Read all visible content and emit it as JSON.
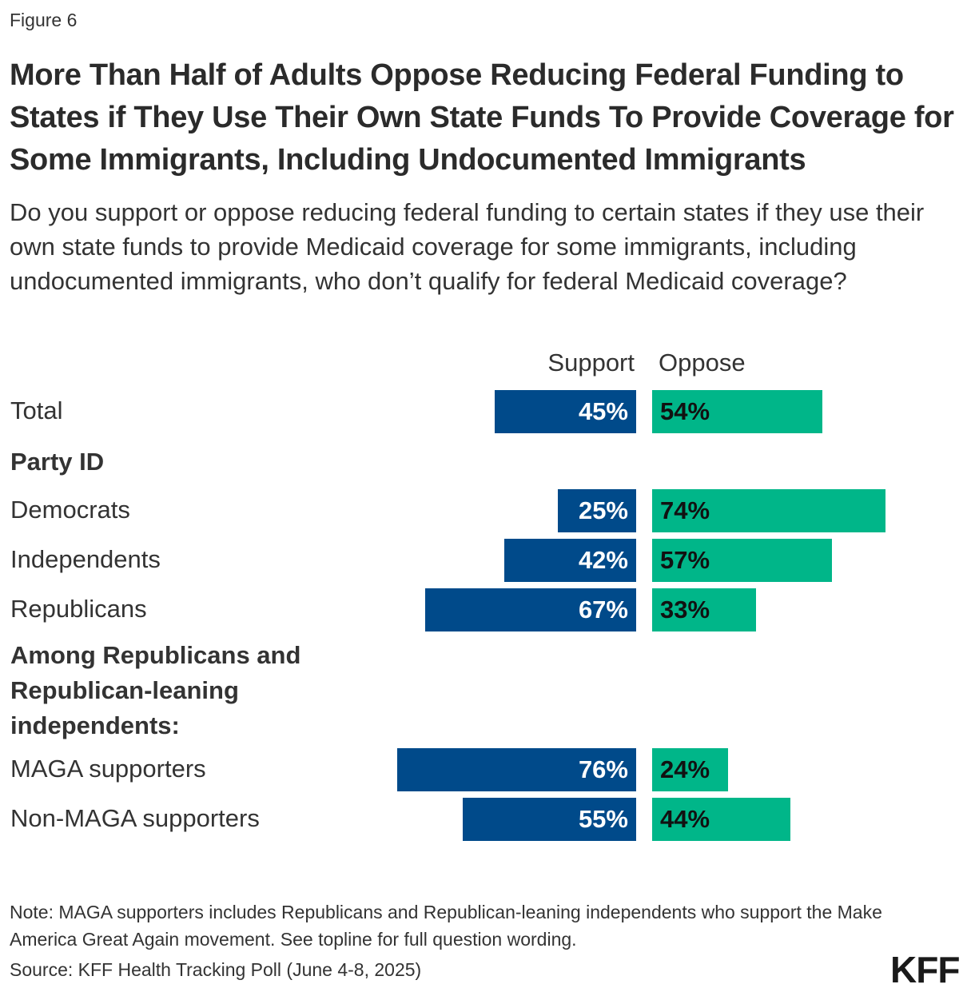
{
  "figure_label": "Figure 6",
  "title": "More Than Half of Adults Oppose Reducing Federal Funding to States if They Use Their Own State Funds To Provide Coverage for Some Immigrants, Including Undocumented Immigrants",
  "subtitle": "Do you support or oppose reducing federal funding to certain states if they use their own state funds to provide Medicaid coverage for some immigrants, including undocumented immigrants, who don’t qualify for federal Medicaid coverage?",
  "note": "Note: MAGA supporters includes Republicans and Republican-leaning independents who support the Make America Great Again movement. See topline for full question wording.",
  "source": "Source: KFF Health Tracking Poll (June 4-8, 2025)",
  "logo": "KFF",
  "colors": {
    "support": "#004a8a",
    "oppose": "#00b689"
  },
  "chart_data": {
    "type": "bar",
    "orientation": "horizontal-diverging",
    "series": [
      {
        "name": "Support",
        "color": "#004a8a"
      },
      {
        "name": "Oppose",
        "color": "#00b689"
      }
    ],
    "groups": [
      "Party ID",
      "Among Republicans and Republican-leaning independents:"
    ],
    "rows": [
      {
        "category": "Total",
        "support": 45,
        "oppose": 54
      },
      {
        "category": "Democrats",
        "group": "Party ID",
        "support": 25,
        "oppose": 74
      },
      {
        "category": "Independents",
        "group": "Party ID",
        "support": 42,
        "oppose": 57
      },
      {
        "category": "Republicans",
        "group": "Party ID",
        "support": 67,
        "oppose": 33
      },
      {
        "category": "MAGA supporters",
        "group": "Among Republicans and Republican-leaning independents:",
        "support": 76,
        "oppose": 24
      },
      {
        "category": "Non-MAGA supporters",
        "group": "Among Republicans and Republican-leaning independents:",
        "support": 55,
        "oppose": 44
      }
    ],
    "value_suffix": "%"
  }
}
